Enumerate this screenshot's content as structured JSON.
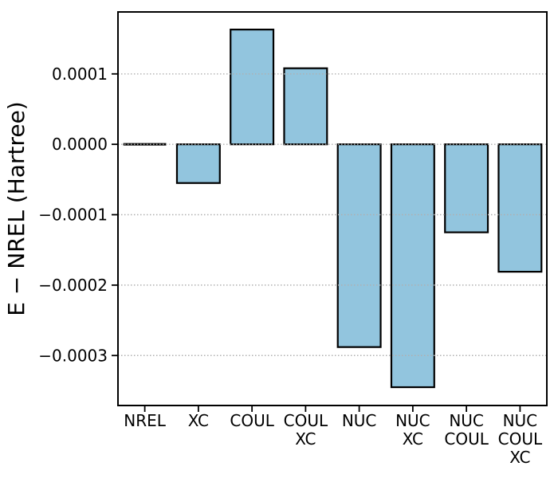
{
  "chart_data": {
    "type": "bar",
    "title": "",
    "xlabel": "",
    "ylabel": "E − NREL (Hartree)",
    "categories": [
      "NREL",
      "XC",
      "COUL",
      "COUL\nXC",
      "NUC",
      "NUC\nXC",
      "NUC\nCOUL",
      "NUC\nCOUL\nXC"
    ],
    "values": [
      0.0,
      -5.5e-05,
      0.000163,
      0.000108,
      -0.000288,
      -0.000345,
      -0.000125,
      -0.000181
    ],
    "yticks": [
      0.0001,
      0.0,
      -0.0001,
      -0.0002,
      -0.0003
    ],
    "ytick_labels": [
      "0.0001",
      "0.0000",
      "−0.0001",
      "−0.0002",
      "−0.0003"
    ],
    "ylim": [
      -0.000371,
      0.000188
    ],
    "grid": "horizontal dotted gridlines at yticks, drawn above bars",
    "legend": "none",
    "bar_width_fraction": 0.8,
    "colors": {
      "bar_fill": "#92C5DE",
      "bar_edge": "#000000",
      "grid": "#b0b0b0",
      "spine": "#000000",
      "text": "#000000",
      "background": "#ffffff"
    }
  }
}
